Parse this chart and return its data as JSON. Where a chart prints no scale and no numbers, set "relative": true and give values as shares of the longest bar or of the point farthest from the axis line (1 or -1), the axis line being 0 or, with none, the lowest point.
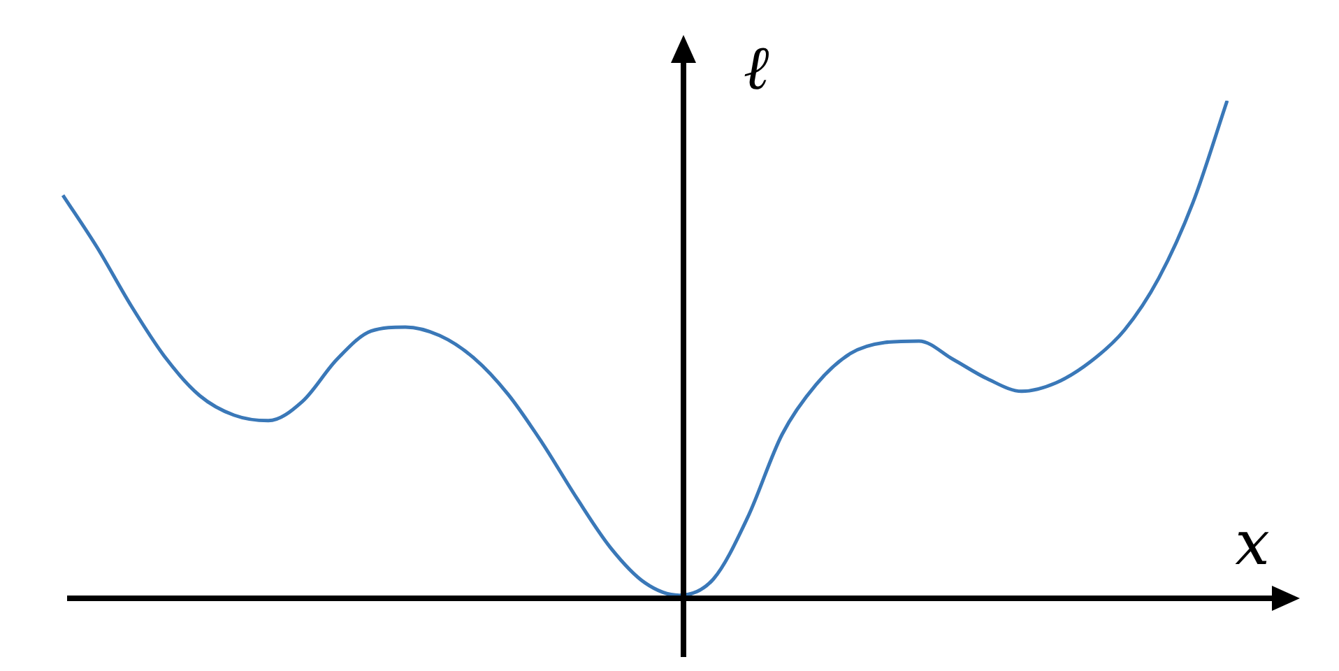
{
  "chart_data": {
    "type": "line",
    "relative": true,
    "xlabel": "x",
    "ylabel": "ℓ",
    "color": "#3a78b8",
    "marker": "none",
    "line_style": "solid",
    "grid": false,
    "legend": false,
    "tick_labels": false,
    "categories": [
      null,
      null,
      null,
      null,
      null,
      null,
      null,
      null,
      null,
      null,
      null,
      null,
      null,
      null,
      null,
      null,
      null,
      null,
      null,
      null,
      null,
      null,
      null,
      null,
      null,
      null,
      null,
      null,
      null,
      null,
      null,
      null,
      null,
      null,
      null
    ],
    "values": [
      0.81,
      0.705,
      0.587,
      0.483,
      0.407,
      0.368,
      0.357,
      0.396,
      0.48,
      0.537,
      0.545,
      0.528,
      0.483,
      0.41,
      0.312,
      0.202,
      0.101,
      0.031,
      0.006,
      0.039,
      0.163,
      0.329,
      0.43,
      0.492,
      0.514,
      0.517,
      0.48,
      0.441,
      0.416,
      0.433,
      0.475,
      0.539,
      0.643,
      0.795,
      1
    ]
  }
}
